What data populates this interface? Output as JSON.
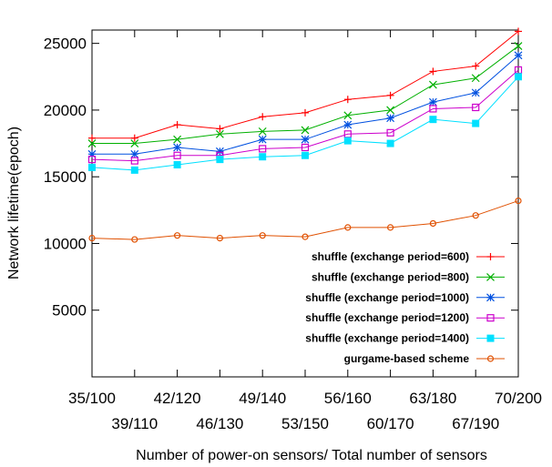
{
  "chart_data": {
    "type": "line",
    "xlabel": "Number of power-on sensors/ Total number of sensors",
    "ylabel": "Network lifetime(epoch)",
    "categories": [
      "35/100",
      "39/110",
      "42/120",
      "46/130",
      "49/140",
      "53/150",
      "56/160",
      "60/170",
      "63/180",
      "67/190",
      "70/200"
    ],
    "ylim": [
      0,
      26000
    ],
    "yticks": [
      5000,
      10000,
      15000,
      20000,
      25000
    ],
    "ytick_labels": [
      "5000",
      "10000",
      "15000",
      "20000",
      "25000"
    ],
    "legend_position": "right",
    "grid": false,
    "series": [
      {
        "name": "shuffle (exchange period=600)",
        "color": "#ff0000",
        "marker": "plus",
        "values": [
          17900,
          17900,
          18900,
          18600,
          19500,
          19800,
          20800,
          21100,
          22900,
          23300,
          25900
        ]
      },
      {
        "name": "shuffle (exchange period=800)",
        "color": "#00b000",
        "marker": "cross",
        "values": [
          17500,
          17500,
          17800,
          18200,
          18400,
          18500,
          19600,
          20000,
          21900,
          22400,
          24800
        ]
      },
      {
        "name": "shuffle (exchange period=1000)",
        "color": "#0050e0",
        "marker": "star",
        "values": [
          16700,
          16700,
          17200,
          16900,
          17800,
          17800,
          18900,
          19400,
          20600,
          21300,
          24100
        ]
      },
      {
        "name": "shuffle (exchange period=1200)",
        "color": "#cc00cc",
        "marker": "square-open",
        "values": [
          16300,
          16200,
          16600,
          16600,
          17100,
          17200,
          18200,
          18300,
          20100,
          20200,
          23000
        ]
      },
      {
        "name": "shuffle (exchange period=1400)",
        "color": "#00e0ff",
        "marker": "square-filled",
        "values": [
          15700,
          15500,
          15900,
          16300,
          16500,
          16600,
          17700,
          17500,
          19300,
          19000,
          22500
        ]
      },
      {
        "name": "gurgame-based scheme",
        "color": "#e05000",
        "marker": "circle-open",
        "values": [
          10400,
          10300,
          10600,
          10400,
          10600,
          10500,
          11200,
          11200,
          11500,
          12100,
          13200
        ]
      }
    ]
  }
}
